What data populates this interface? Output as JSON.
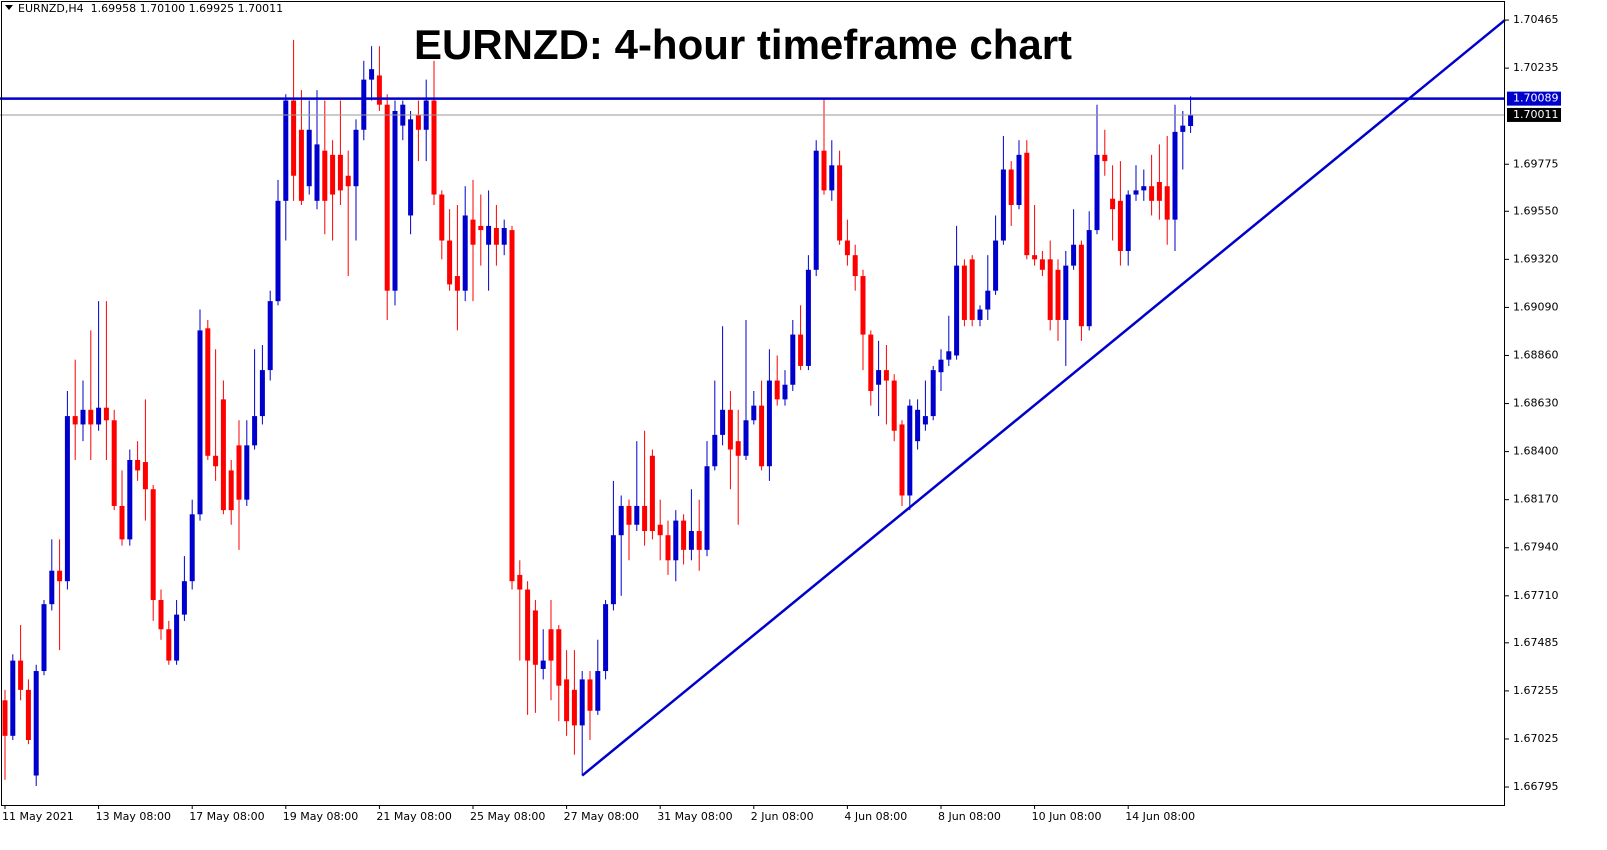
{
  "chart_data": {
    "type": "candlestick",
    "header": "EURNZD,H4  1.69958 1.70100 1.69925 1.70011",
    "title": "EURNZD: 4-hour timeframe chart",
    "up_color": "#0000cc",
    "down_color": "#ff0000",
    "categories": [
      "11 May 2021",
      null,
      null,
      null,
      null,
      null,
      null,
      null,
      null,
      null,
      null,
      null,
      "13 May 08:00",
      null,
      null,
      null,
      null,
      null,
      null,
      null,
      null,
      null,
      null,
      null,
      "17 May 08:00",
      null,
      null,
      null,
      null,
      null,
      null,
      null,
      null,
      null,
      null,
      null,
      "19 May 08:00",
      null,
      null,
      null,
      null,
      null,
      null,
      null,
      null,
      null,
      null,
      null,
      "21 May 08:00",
      null,
      null,
      null,
      null,
      null,
      null,
      null,
      null,
      null,
      null,
      null,
      "25 May 08:00",
      null,
      null,
      null,
      null,
      null,
      null,
      null,
      null,
      null,
      null,
      null,
      "27 May 08:00",
      null,
      null,
      null,
      null,
      null,
      null,
      null,
      null,
      null,
      null,
      null,
      "31 May 08:00",
      null,
      null,
      null,
      null,
      null,
      null,
      null,
      null,
      null,
      null,
      null,
      "2 Jun 08:00",
      null,
      null,
      null,
      null,
      null,
      null,
      null,
      null,
      null,
      null,
      null,
      "4 Jun 08:00",
      null,
      null,
      null,
      null,
      null,
      null,
      null,
      null,
      null,
      null,
      null,
      "8 Jun 08:00",
      null,
      null,
      null,
      null,
      null,
      null,
      null,
      null,
      null,
      null,
      null,
      "10 Jun 08:00",
      null,
      null,
      null,
      null,
      null,
      null,
      null,
      null,
      null,
      null,
      null,
      "14 Jun 08:00",
      null,
      null,
      null,
      null,
      null,
      null,
      null,
      null
    ],
    "open": [
      1.6721,
      1.6704,
      1.674,
      1.6726,
      1.6685,
      1.6735,
      1.6767,
      1.6783,
      1.6778,
      1.6857,
      1.6853,
      1.686,
      1.6853,
      1.6861,
      1.6855,
      1.6814,
      1.6798,
      1.6836,
      1.6835,
      1.6822,
      1.6769,
      1.6755,
      1.674,
      1.6762,
      1.6778,
      1.681,
      1.6899,
      1.6838,
      1.6865,
      1.6831,
      1.6843,
      1.6817,
      1.6843,
      1.6857,
      1.6879,
      1.6912,
      1.696,
      1.7008,
      1.6994,
      1.6967,
      1.696,
      1.6984,
      1.6982,
      1.6982,
      1.6972,
      1.6967,
      1.6994,
      1.7018,
      1.702,
      1.7006,
      1.6917,
      1.6996,
      1.6953,
      1.7001,
      1.6994,
      1.7008,
      1.6963,
      1.6941,
      1.6924,
      1.6917,
      1.6951,
      1.6948,
      1.6939,
      1.6947,
      1.6939,
      1.6946,
      1.6781,
      1.6774,
      1.6764,
      1.6736,
      1.6755,
      1.6755,
      1.6731,
      1.6726,
      1.6709,
      1.6731,
      1.6716,
      1.6735,
      1.6767,
      1.68,
      1.6814,
      1.6805,
      1.6814,
      1.6838,
      1.6805,
      1.68,
      1.6788,
      1.6807,
      1.6793,
      1.6802,
      1.6793,
      1.6833,
      1.6848,
      1.686,
      1.6845,
      1.6838,
      1.6855,
      1.6862,
      1.6833,
      1.6874,
      1.6865,
      1.6872,
      1.6896,
      1.6881,
      1.6927,
      1.6984,
      1.6965,
      1.6977,
      1.6941,
      1.6934,
      1.6924,
      1.6896,
      1.6872,
      1.6879,
      1.6874,
      1.6853,
      1.6819,
      1.6845,
      1.6853,
      1.6857,
      1.6878,
      1.6884,
      1.6886,
      1.6929,
      1.6932,
      1.6903,
      1.6908,
      1.6917,
      1.6941,
      1.6975,
      1.6958,
      1.6983,
      1.6934,
      1.6932,
      1.6932,
      1.6927,
      1.6903,
      1.6929,
      1.6939,
      1.69,
      1.6946,
      1.6982,
      1.6961,
      1.696,
      1.6936,
      1.6963,
      1.6965,
      1.6967,
      1.6969,
      1.6967,
      1.6951,
      1.6993,
      1.69958
    ],
    "high": [
      1.6726,
      1.6743,
      1.6757,
      1.6731,
      1.6738,
      1.6769,
      1.6798,
      1.6798,
      1.6869,
      1.6884,
      1.6874,
      1.6898,
      1.6912,
      1.6912,
      1.686,
      1.6831,
      1.6841,
      1.6845,
      1.6865,
      1.6824,
      1.6774,
      1.6759,
      1.6769,
      1.679,
      1.6817,
      1.6908,
      1.6903,
      1.6889,
      1.6874,
      1.6836,
      1.6855,
      1.6855,
      1.6889,
      1.6891,
      1.6917,
      1.697,
      1.7011,
      1.7037,
      1.7013,
      1.7008,
      1.7013,
      1.7008,
      1.6989,
      1.7008,
      1.6984,
      1.6999,
      1.7027,
      1.7034,
      1.7034,
      1.7011,
      1.7008,
      1.7008,
      1.7003,
      1.7008,
      1.7018,
      1.7027,
      1.6965,
      1.6956,
      1.6958,
      1.6967,
      1.697,
      1.6963,
      1.6965,
      1.6958,
      1.6951,
      1.6948,
      1.6788,
      1.6778,
      1.6769,
      1.6755,
      1.6769,
      1.6757,
      1.6745,
      1.6745,
      1.6735,
      1.6735,
      1.675,
      1.6769,
      1.6826,
      1.6819,
      1.6817,
      1.6845,
      1.685,
      1.6841,
      1.6817,
      1.6807,
      1.6812,
      1.681,
      1.6822,
      1.6817,
      1.6845,
      1.6874,
      1.69,
      1.6869,
      1.686,
      1.6903,
      1.6869,
      1.6874,
      1.6889,
      1.6886,
      1.6879,
      1.6903,
      1.691,
      1.6934,
      1.6989,
      1.7009,
      1.6989,
      1.6984,
      1.6951,
      1.6939,
      1.6927,
      1.6898,
      1.6893,
      1.6891,
      1.6877,
      1.6855,
      1.6865,
      1.6865,
      1.6874,
      1.6881,
      1.6889,
      1.6905,
      1.6948,
      1.6932,
      1.6934,
      1.691,
      1.6934,
      1.6953,
      1.6991,
      1.6979,
      1.6989,
      1.6989,
      1.6958,
      1.6936,
      1.6941,
      1.6932,
      1.6936,
      1.6956,
      1.6941,
      1.6955,
      1.7006,
      1.6994,
      1.6977,
      1.6979,
      1.6965,
      1.6977,
      1.6975,
      1.6982,
      1.6987,
      1.6991,
      1.7006,
      1.7003,
      1.701
    ],
    "low": [
      1.6683,
      1.6702,
      1.6721,
      1.67,
      1.668,
      1.6733,
      1.6764,
      1.6745,
      1.6774,
      1.6836,
      1.6845,
      1.6836,
      1.685,
      1.6836,
      1.6812,
      1.6795,
      1.6795,
      1.6826,
      1.6807,
      1.6759,
      1.675,
      1.6738,
      1.6738,
      1.6759,
      1.6774,
      1.6807,
      1.6836,
      1.6826,
      1.681,
      1.6805,
      1.6793,
      1.6814,
      1.6841,
      1.6853,
      1.6874,
      1.691,
      1.6941,
      1.696,
      1.6958,
      1.6963,
      1.6956,
      1.6944,
      1.6941,
      1.6958,
      1.6924,
      1.6941,
      1.6989,
      1.7008,
      1.7003,
      1.6903,
      1.691,
      1.6989,
      1.6944,
      1.6979,
      1.6979,
      1.6958,
      1.6932,
      1.6917,
      1.6898,
      1.6912,
      1.6912,
      1.6929,
      1.6917,
      1.6929,
      1.6934,
      1.6774,
      1.674,
      1.6714,
      1.6715,
      1.6731,
      1.6721,
      1.6711,
      1.6704,
      1.6695,
      1.6685,
      1.6702,
      1.6714,
      1.6731,
      1.6764,
      1.6771,
      1.6788,
      1.6802,
      1.6795,
      1.6798,
      1.6788,
      1.6781,
      1.6778,
      1.6786,
      1.6788,
      1.6783,
      1.679,
      1.6831,
      1.6843,
      1.6822,
      1.6805,
      1.6836,
      1.6853,
      1.6831,
      1.6826,
      1.6862,
      1.6862,
      1.6869,
      1.6879,
      1.6879,
      1.6924,
      1.6963,
      1.696,
      1.6939,
      1.6929,
      1.6917,
      1.6879,
      1.6862,
      1.6857,
      1.6853,
      1.6845,
      1.6814,
      1.6812,
      1.6841,
      1.685,
      1.6855,
      1.6869,
      1.6881,
      1.6884,
      1.69,
      1.69,
      1.69,
      1.6903,
      1.6915,
      1.6939,
      1.6948,
      1.6956,
      1.6932,
      1.6929,
      1.6924,
      1.6898,
      1.6893,
      1.6881,
      1.6927,
      1.6893,
      1.6898,
      1.6944,
      1.6972,
      1.6941,
      1.6929,
      1.6929,
      1.696,
      1.696,
      1.6953,
      1.6951,
      1.6939,
      1.6936,
      1.6975,
      1.69925
    ],
    "close": [
      1.6704,
      1.674,
      1.6726,
      1.6702,
      1.6735,
      1.6767,
      1.6783,
      1.6778,
      1.6857,
      1.6853,
      1.686,
      1.6853,
      1.6861,
      1.6855,
      1.6814,
      1.6798,
      1.6836,
      1.6831,
      1.6822,
      1.6769,
      1.6755,
      1.674,
      1.6762,
      1.6778,
      1.681,
      1.6898,
      1.6838,
      1.6833,
      1.6812,
      1.6812,
      1.6817,
      1.6843,
      1.6857,
      1.6879,
      1.6912,
      1.696,
      1.7008,
      1.6972,
      1.696,
      1.6994,
      1.6987,
      1.696,
      1.6963,
      1.6965,
      1.6967,
      1.6994,
      1.7018,
      1.7023,
      1.7006,
      1.6917,
      1.7003,
      1.7006,
      1.6999,
      1.6994,
      1.7008,
      1.6963,
      1.6941,
      1.692,
      1.6917,
      1.6953,
      1.6939,
      1.6946,
      1.6948,
      1.6939,
      1.6947,
      1.6778,
      1.6774,
      1.674,
      1.6738,
      1.674,
      1.674,
      1.6728,
      1.6711,
      1.6709,
      1.6731,
      1.6716,
      1.6735,
      1.6767,
      1.68,
      1.6814,
      1.6805,
      1.6814,
      1.6802,
      1.6802,
      1.68,
      1.6788,
      1.6807,
      1.6793,
      1.6802,
      1.6793,
      1.6833,
      1.6848,
      1.686,
      1.6841,
      1.6838,
      1.6855,
      1.6862,
      1.6833,
      1.6874,
      1.6865,
      1.6872,
      1.6896,
      1.6881,
      1.6927,
      1.6984,
      1.6965,
      1.6977,
      1.6941,
      1.6934,
      1.6924,
      1.6896,
      1.6869,
      1.6879,
      1.6874,
      1.685,
      1.6819,
      1.6862,
      1.686,
      1.6857,
      1.6879,
      1.6884,
      1.6888,
      1.6929,
      1.6903,
      1.6903,
      1.6908,
      1.6917,
      1.6941,
      1.6975,
      1.6958,
      1.6982,
      1.6934,
      1.6932,
      1.6927,
      1.6903,
      1.6903,
      1.6929,
      1.6939,
      1.69,
      1.6946,
      1.6982,
      1.6979,
      1.6956,
      1.6936,
      1.6963,
      1.6965,
      1.6967,
      1.696,
      1.696,
      1.6951,
      1.6993,
      1.6996,
      1.70011
    ],
    "ylim": [
      1.66709,
      1.70561
    ],
    "yticks": [
      1.70465,
      1.70235,
      1.69775,
      {
        "value": 1.6955,
        "label": "1.69550"
      },
      {
        "value": 1.6932,
        "label": "1.69320"
      },
      {
        "value": 1.6909,
        "label": "1.69090"
      },
      {
        "value": 1.6886,
        "label": "1.68860"
      },
      {
        "value": 1.6863,
        "label": "1.68630"
      },
      {
        "value": 1.684,
        "label": "1.68400"
      },
      {
        "value": 1.6817,
        "label": "1.68170"
      },
      {
        "value": 1.6794,
        "label": "1.67940"
      },
      {
        "value": 1.6771,
        "label": "1.67710"
      },
      1.67485,
      1.67255,
      1.67025,
      1.66795
    ],
    "hlines": [
      {
        "value": 1.70089,
        "color": "#0000cc"
      },
      {
        "value": 1.70011,
        "color": "#9a9a9a"
      }
    ],
    "trendline": {
      "x": [
        74,
        192.3
      ],
      "y": [
        1.6685,
        1.70465
      ],
      "color": "#0000cc"
    }
  }
}
